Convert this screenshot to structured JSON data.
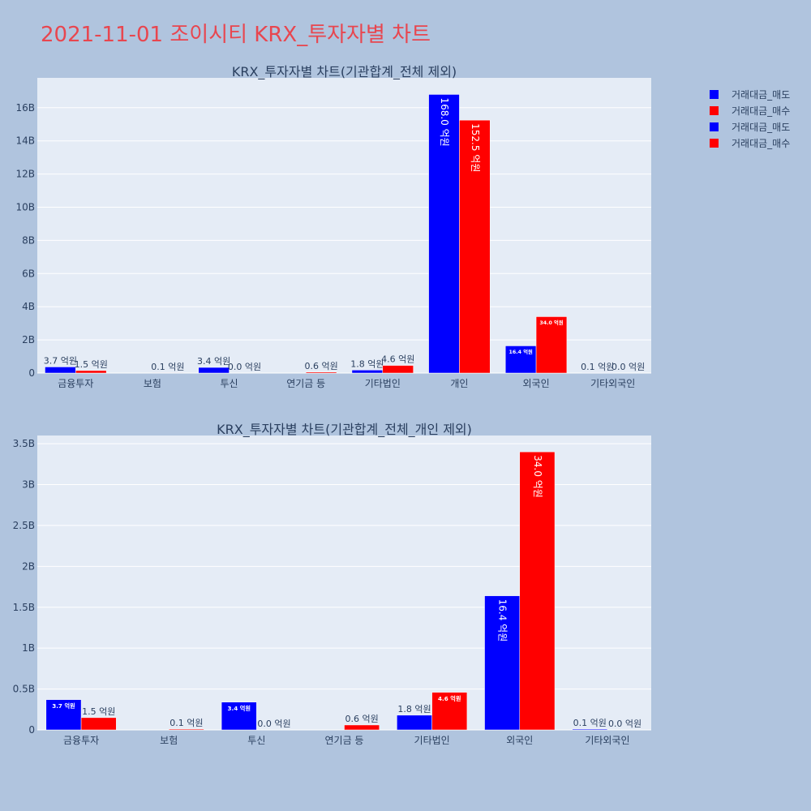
{
  "page_title": "2021-11-01 조이시티 KRX_투자자별 차트",
  "legend": [
    {
      "label": "거래대금_매도",
      "color": "#0000ff"
    },
    {
      "label": "거래대금_매수",
      "color": "#ff0000"
    },
    {
      "label": "거래대금_매도",
      "color": "#0000ff"
    },
    {
      "label": "거래대금_매수",
      "color": "#ff0000"
    }
  ],
  "chart_data": [
    {
      "type": "bar",
      "title": "KRX_투자자별 차트(기관합계_전체 제외)",
      "categories": [
        "금융투자",
        "보험",
        "투신",
        "연기금 등",
        "기타법인",
        "개인",
        "외국인",
        "기타외국인"
      ],
      "ylim": [
        0,
        17800000000
      ],
      "yticks": [
        0,
        2000000000,
        4000000000,
        6000000000,
        8000000000,
        10000000000,
        12000000000,
        14000000000,
        16000000000
      ],
      "yticklabels": [
        "0",
        "2B",
        "4B",
        "6B",
        "8B",
        "10B",
        "12B",
        "14B",
        "16B"
      ],
      "grid": true,
      "series": [
        {
          "name": "거래대금_매도",
          "color": "#0000ff",
          "values": [
            370000000,
            0,
            340000000,
            0,
            180000000,
            16800000000,
            1640000000,
            10000000
          ],
          "labels": [
            "3.7 억원",
            "",
            "3.4 억원",
            "",
            "1.8 억원",
            "168.0 억원",
            "16.4 억원",
            "0.1 억원"
          ]
        },
        {
          "name": "거래대금_매수",
          "color": "#ff0000",
          "values": [
            150000000,
            10000000,
            0,
            60000000,
            460000000,
            15250000000,
            3400000000,
            0
          ],
          "labels": [
            "1.5 억원",
            "0.1 억원",
            "0.0 억원",
            "0.6 억원",
            "4.6 억원",
            "152.5 억원",
            "34.0 억원",
            "0.0 억원"
          ]
        }
      ]
    },
    {
      "type": "bar",
      "title": "KRX_투자자별 차트(기관합계_전체_개인 제외)",
      "categories": [
        "금융투자",
        "보험",
        "투신",
        "연기금 등",
        "기타법인",
        "외국인",
        "기타외국인"
      ],
      "ylim": [
        0,
        3600000000
      ],
      "yticks": [
        0,
        500000000,
        1000000000,
        1500000000,
        2000000000,
        2500000000,
        3000000000,
        3500000000
      ],
      "yticklabels": [
        "0",
        "0.5B",
        "1B",
        "1.5B",
        "2B",
        "2.5B",
        "3B",
        "3.5B"
      ],
      "grid": true,
      "series": [
        {
          "name": "거래대금_매도",
          "color": "#0000ff",
          "values": [
            370000000,
            0,
            340000000,
            0,
            180000000,
            1640000000,
            10000000
          ],
          "labels": [
            "3.7 억원",
            "",
            "3.4 억원",
            "",
            "1.8 억원",
            "16.4 억원",
            "0.1 억원"
          ]
        },
        {
          "name": "거래대금_매수",
          "color": "#ff0000",
          "values": [
            150000000,
            10000000,
            0,
            60000000,
            460000000,
            3400000000,
            0
          ],
          "labels": [
            "1.5 억원",
            "0.1 억원",
            "0.0 억원",
            "0.6 억원",
            "4.6 억원",
            "34.0 억원",
            "0.0 억원"
          ]
        }
      ]
    }
  ]
}
